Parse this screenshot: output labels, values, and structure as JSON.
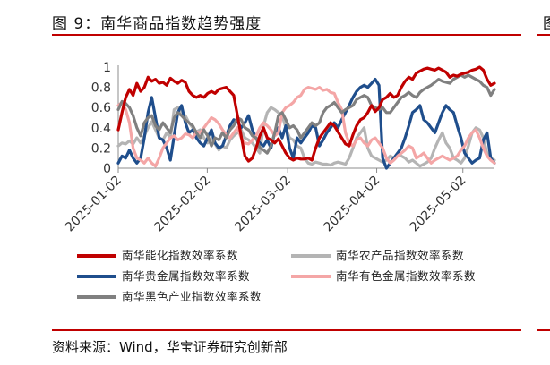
{
  "header": {
    "title": "图 9：南华商品指数趋势强度"
  },
  "footer": {
    "source": "资料来源：Wind，华宝证券研究创新部"
  },
  "edge": {
    "right_glyph": "图"
  },
  "chart_data": {
    "type": "line",
    "title": "图 9：南华商品指数趋势强度",
    "xlabel": "",
    "ylabel": "",
    "ylim": [
      0,
      1
    ],
    "yticks": [
      "0",
      "0.2",
      "0.4",
      "0.6",
      "0.8",
      "1"
    ],
    "xticks": [
      "2025-01-02",
      "2025-02-02",
      "2025-03-02",
      "2025-04-02",
      "2025-05-02"
    ],
    "x_start": "2025-01-02",
    "x_end": "2025-05-13",
    "grid": false,
    "legend_position": "bottom",
    "series": [
      {
        "name": "南华能化指数效率系数",
        "color": "#c00000",
        "values": [
          0.38,
          0.55,
          0.7,
          0.78,
          0.72,
          0.84,
          0.76,
          0.8,
          0.9,
          0.86,
          0.88,
          0.84,
          0.85,
          0.82,
          0.89,
          0.86,
          0.84,
          0.87,
          0.85,
          0.76,
          0.72,
          0.7,
          0.72,
          0.7,
          0.74,
          0.76,
          0.74,
          0.78,
          0.79,
          0.8,
          0.76,
          0.72,
          0.52,
          0.32,
          0.12,
          0.07,
          0.1,
          0.2,
          0.32,
          0.4,
          0.3,
          0.28,
          0.25,
          0.29,
          0.22,
          0.15,
          0.1,
          0.08,
          0.1,
          0.09,
          0.09,
          0.1,
          0.08,
          0.2,
          0.3,
          0.35,
          0.4,
          0.45,
          0.42,
          0.36,
          0.3,
          0.24,
          0.22,
          0.33,
          0.42,
          0.48,
          0.5,
          0.55,
          0.62,
          0.56,
          0.6,
          0.68,
          0.7,
          0.74,
          0.7,
          0.72,
          0.8,
          0.86,
          0.9,
          0.88,
          0.94,
          0.96,
          0.98,
          0.99,
          0.98,
          0.97,
          0.99,
          0.97,
          0.95,
          0.9,
          0.92,
          0.91,
          0.93,
          0.94,
          0.95,
          0.97,
          0.98,
          1.0,
          0.97,
          0.88,
          0.82,
          0.84
        ]
      },
      {
        "name": "南华农产品指数效率系数",
        "color": "#b4b4b4",
        "values": [
          0.22,
          0.25,
          0.24,
          0.27,
          0.24,
          0.3,
          0.25,
          0.32,
          0.4,
          0.46,
          0.38,
          0.3,
          0.28,
          0.35,
          0.3,
          0.58,
          0.6,
          0.55,
          0.52,
          0.45,
          0.4,
          0.36,
          0.38,
          0.3,
          0.25,
          0.3,
          0.24,
          0.18,
          0.22,
          0.2,
          0.28,
          0.32,
          0.35,
          0.38,
          0.3,
          0.28,
          0.25,
          0.2,
          0.15,
          0.42,
          0.55,
          0.6,
          0.58,
          0.55,
          0.52,
          0.4,
          0.3,
          0.28,
          0.22,
          0.2,
          0.1,
          0.05,
          0.04,
          0.06,
          0.05,
          0.04,
          0.04,
          0.03,
          0.05,
          0.06,
          0.05,
          0.04,
          0.1,
          0.2,
          0.3,
          0.35,
          0.4,
          0.2,
          0.12,
          0.1,
          0.08,
          0.06,
          0.08,
          0.12,
          0.1,
          0.15,
          0.12,
          0.1,
          0.06,
          0.08,
          0.05,
          0.02,
          0.04,
          0.06,
          0.1,
          0.2,
          0.28,
          0.35,
          0.25,
          0.2,
          0.1,
          0.08,
          0.05,
          0.1,
          0.22,
          0.35,
          0.4,
          0.38,
          0.3,
          0.15,
          0.1,
          0.08
        ]
      },
      {
        "name": "南华贵金属指数效率系数",
        "color": "#1f4e8c",
        "values": [
          0.05,
          0.12,
          0.1,
          0.18,
          0.1,
          0.05,
          0.1,
          0.3,
          0.55,
          0.7,
          0.5,
          0.3,
          0.28,
          0.2,
          0.08,
          0.32,
          0.55,
          0.62,
          0.45,
          0.35,
          0.38,
          0.3,
          0.25,
          0.22,
          0.3,
          0.38,
          0.25,
          0.2,
          0.22,
          0.32,
          0.42,
          0.48,
          0.46,
          0.4,
          0.45,
          0.52,
          0.38,
          0.3,
          0.25,
          0.22,
          0.28,
          0.2,
          0.35,
          0.4,
          0.3,
          0.42,
          0.2,
          0.1,
          0.3,
          0.25,
          0.3,
          0.35,
          0.42,
          0.4,
          0.22,
          0.28,
          0.35,
          0.4,
          0.45,
          0.4,
          0.48,
          0.55,
          0.62,
          0.7,
          0.76,
          0.8,
          0.82,
          0.8,
          0.84,
          0.88,
          0.82,
          0.1,
          0.0,
          0.05,
          0.1,
          0.15,
          0.2,
          0.3,
          0.42,
          0.55,
          0.58,
          0.62,
          0.48,
          0.45,
          0.4,
          0.35,
          0.45,
          0.55,
          0.62,
          0.58,
          0.55,
          0.42,
          0.3,
          0.15,
          0.1,
          0.05,
          0.08,
          0.1,
          0.28,
          0.35,
          0.1,
          0.05
        ]
      },
      {
        "name": "南华有色金属指数效率系数",
        "color": "#f4a6a6",
        "values": [
          0.62,
          0.65,
          0.58,
          0.45,
          0.2,
          0.1,
          0.08,
          0.05,
          0.1,
          0.05,
          0.02,
          0.1,
          0.2,
          0.25,
          0.3,
          0.32,
          0.28,
          0.3,
          0.34,
          0.33,
          0.3,
          0.36,
          0.35,
          0.4,
          0.45,
          0.5,
          0.48,
          0.44,
          0.38,
          0.33,
          0.3,
          0.35,
          0.4,
          0.3,
          0.25,
          0.24,
          0.28,
          0.32,
          0.4,
          0.45,
          0.42,
          0.38,
          0.32,
          0.35,
          0.55,
          0.6,
          0.62,
          0.65,
          0.7,
          0.72,
          0.78,
          0.8,
          0.79,
          0.78,
          0.8,
          0.77,
          0.78,
          0.75,
          0.74,
          0.65,
          0.58,
          0.35,
          0.25,
          0.22,
          0.28,
          0.3,
          0.25,
          0.22,
          0.28,
          0.3,
          0.25,
          0.2,
          0.1,
          0.05,
          0.08,
          0.12,
          0.15,
          0.18,
          0.22,
          0.2,
          0.1,
          0.12,
          0.15,
          0.1,
          0.05,
          0.08,
          0.1,
          0.12,
          0.1,
          0.08,
          0.1,
          0.12,
          0.18,
          0.22,
          0.3,
          0.35,
          0.38,
          0.3,
          0.2,
          0.12,
          0.08,
          0.05
        ]
      },
      {
        "name": "南华黑色产业指数效率系数",
        "color": "#808080",
        "values": [
          0.58,
          0.66,
          0.64,
          0.6,
          0.52,
          0.4,
          0.32,
          0.45,
          0.5,
          0.52,
          0.42,
          0.38,
          0.45,
          0.4,
          0.35,
          0.5,
          0.55,
          0.52,
          0.48,
          0.45,
          0.42,
          0.35,
          0.3,
          0.38,
          0.32,
          0.22,
          0.3,
          0.28,
          0.35,
          0.3,
          0.38,
          0.42,
          0.5,
          0.48,
          0.4,
          0.38,
          0.32,
          0.3,
          0.2,
          0.18,
          0.15,
          0.22,
          0.35,
          0.52,
          0.55,
          0.48,
          0.4,
          0.42,
          0.38,
          0.3,
          0.35,
          0.4,
          0.45,
          0.42,
          0.45,
          0.55,
          0.6,
          0.62,
          0.65,
          0.6,
          0.55,
          0.58,
          0.6,
          0.62,
          0.68,
          0.7,
          0.72,
          0.7,
          0.62,
          0.6,
          0.58,
          0.6,
          0.55,
          0.55,
          0.6,
          0.65,
          0.7,
          0.72,
          0.75,
          0.72,
          0.7,
          0.75,
          0.78,
          0.8,
          0.82,
          0.85,
          0.88,
          0.86,
          0.85,
          0.84,
          0.88,
          0.9,
          0.92,
          0.9,
          0.92,
          0.9,
          0.88,
          0.86,
          0.82,
          0.8,
          0.72,
          0.78
        ]
      }
    ]
  }
}
